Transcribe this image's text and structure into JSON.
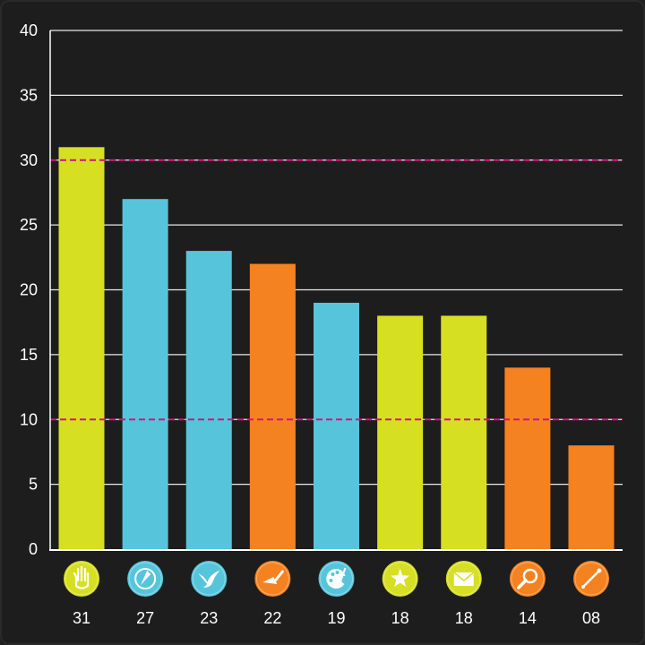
{
  "chart_data": {
    "type": "bar",
    "ylim": [
      0,
      40
    ],
    "yticks": [
      "0",
      "5",
      "10",
      "15",
      "20",
      "25",
      "30",
      "35",
      "40"
    ],
    "reference_lines": [
      10,
      30
    ],
    "reference_line_color": "#d4147f",
    "values": [
      31,
      27,
      23,
      22,
      19,
      18,
      18,
      14,
      8
    ],
    "value_labels": [
      "31",
      "27",
      "23",
      "22",
      "19",
      "18",
      "18",
      "14",
      "08"
    ],
    "bar_colors": [
      "#d6df22",
      "#56c5dc",
      "#56c5dc",
      "#f58220",
      "#56c5dc",
      "#d6df22",
      "#d6df22",
      "#f58220",
      "#f58220"
    ],
    "category_icons": [
      "hand-icon",
      "compass-icon",
      "bird-icon",
      "trowel-icon",
      "palette-icon",
      "star-icon",
      "envelope-icon",
      "magnifier-icon",
      "wand-icon"
    ],
    "grid": true,
    "background": "#1d1d1d"
  }
}
